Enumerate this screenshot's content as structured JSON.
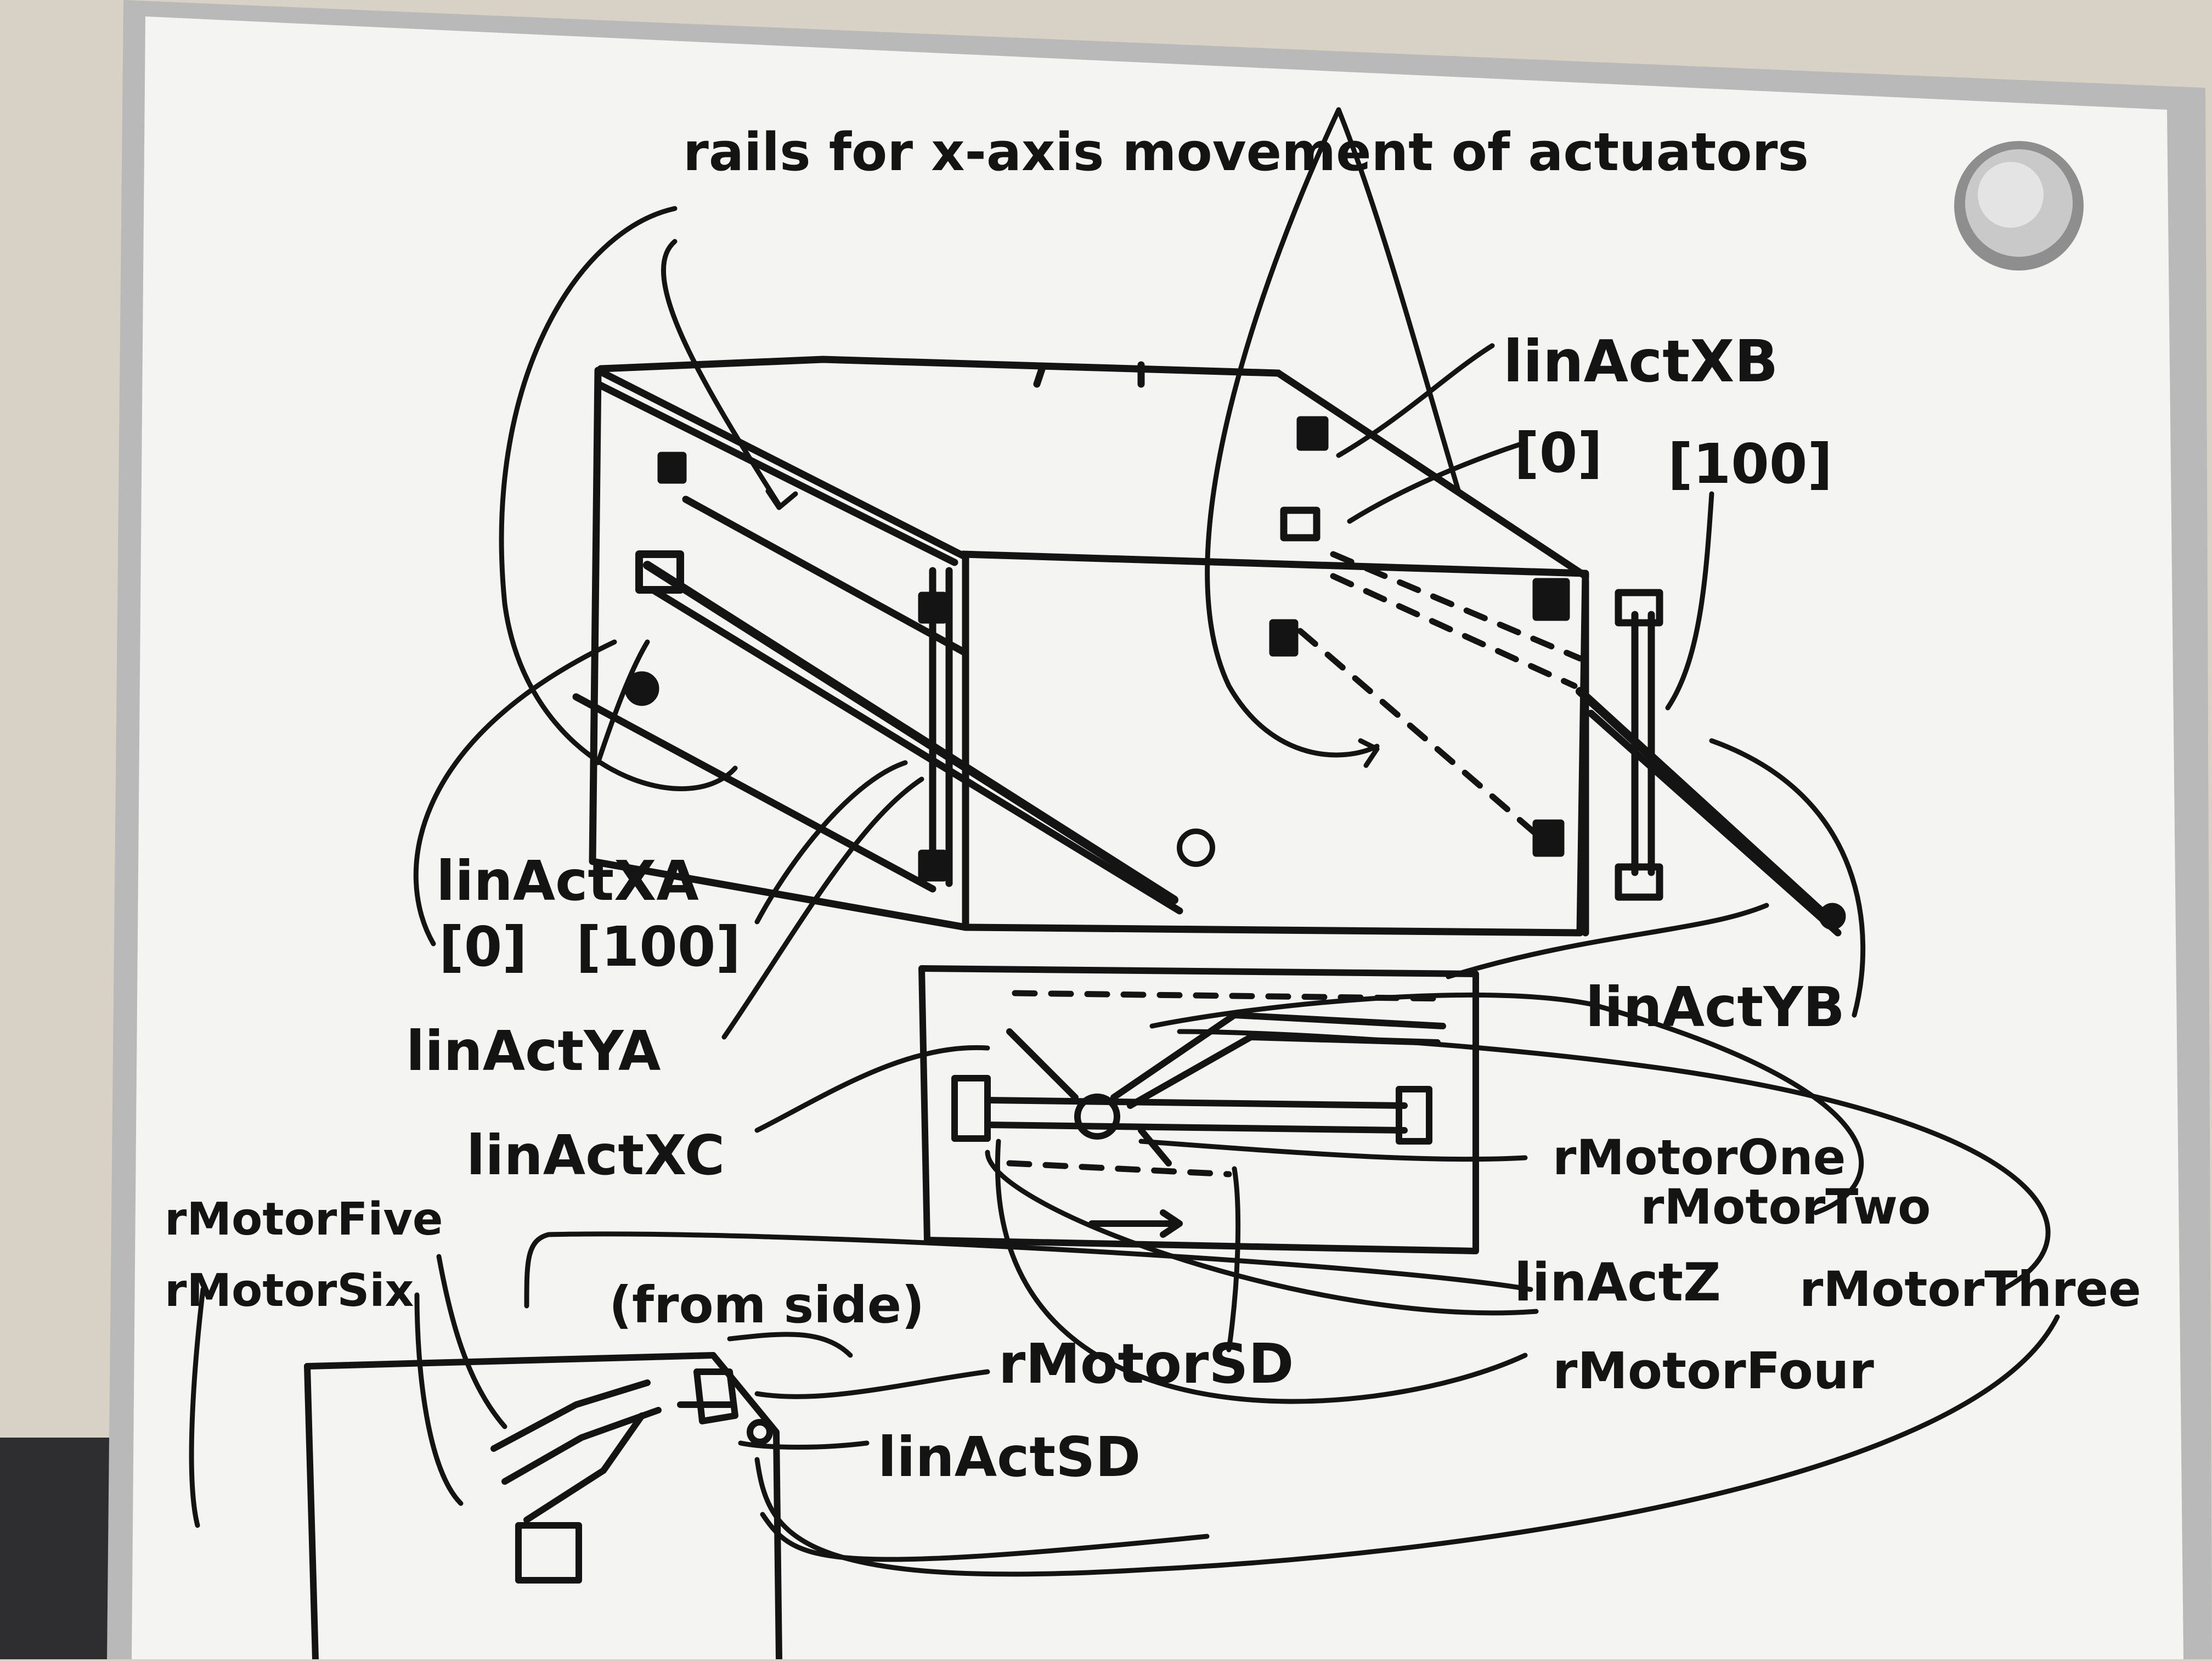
{
  "board": {
    "surface_color": "#f4f4f2",
    "frame_color": "#b9b9b9",
    "ink_color": "#141414",
    "wall_color": "#d8d2c6"
  },
  "labels": {
    "rails": "rails for x-axis movement of actuators",
    "linActXB": "linActXB",
    "xb_zero": "[0]",
    "xb_hundred": "[100]",
    "linActXA": "linActXA",
    "xa_zero": "[0]",
    "xa_hundred": "[100]",
    "linActYA": "linActYA",
    "linActYB": "linActYB",
    "linActXC": "linActXC",
    "rMotorOne": "rMotorOne",
    "rMotorTwo": "rMotorTwo",
    "rMotorThree": "rMotorThree",
    "rMotorFour": "rMotorFour",
    "rMotorFive": "rMotorFive",
    "rMotorSix": "rMotorSix",
    "linActZ": "linActZ",
    "fromSide": "(from side)",
    "rMotorSD": "rMotorSD",
    "linActSD": "linActSD"
  }
}
